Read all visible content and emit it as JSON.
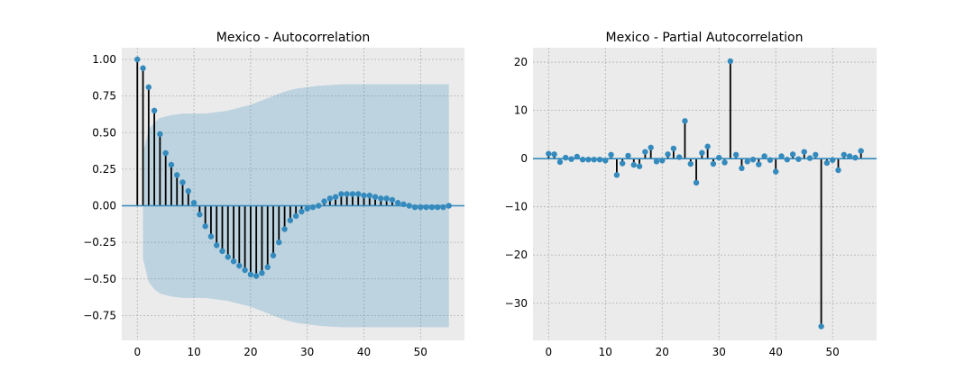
{
  "colors": {
    "axes_bg": "#EBEBEB",
    "grid": "#B0B0B0",
    "marker": "#348ABD",
    "stem": "#000000",
    "baseline": "#348ABD",
    "confidence_fill": "#348ABD",
    "tick_text": "#000000"
  },
  "chart_data": [
    {
      "type": "stem",
      "title": "Mexico - Autocorrelation",
      "xlabel": "",
      "ylabel": "",
      "xlim": [
        -2.75,
        57.75
      ],
      "ylim": [
        -0.92,
        1.08
      ],
      "xticks": [
        0,
        10,
        20,
        30,
        40,
        50
      ],
      "yticks": [
        -0.75,
        -0.5,
        -0.25,
        0.0,
        0.25,
        0.5,
        0.75,
        1.0
      ],
      "ytick_labels": [
        "−0.75",
        "−0.50",
        "−0.25",
        "0.00",
        "0.25",
        "0.50",
        "0.75",
        "1.00"
      ],
      "xtick_labels": [
        "0",
        "10",
        "20",
        "30",
        "40",
        "50"
      ],
      "grid": true,
      "x": [
        0,
        1,
        2,
        3,
        4,
        5,
        6,
        7,
        8,
        9,
        10,
        11,
        12,
        13,
        14,
        15,
        16,
        17,
        18,
        19,
        20,
        21,
        22,
        23,
        24,
        25,
        26,
        27,
        28,
        29,
        30,
        31,
        32,
        33,
        34,
        35,
        36,
        37,
        38,
        39,
        40,
        41,
        42,
        43,
        44,
        45,
        46,
        47,
        48,
        49,
        50,
        51,
        52,
        53,
        54,
        55
      ],
      "values": [
        1.0,
        0.94,
        0.81,
        0.65,
        0.49,
        0.36,
        0.28,
        0.21,
        0.16,
        0.1,
        0.02,
        -0.06,
        -0.14,
        -0.21,
        -0.27,
        -0.31,
        -0.35,
        -0.38,
        -0.41,
        -0.44,
        -0.47,
        -0.48,
        -0.46,
        -0.42,
        -0.34,
        -0.25,
        -0.16,
        -0.1,
        -0.07,
        -0.04,
        -0.02,
        -0.01,
        0.0,
        0.03,
        0.05,
        0.06,
        0.08,
        0.08,
        0.08,
        0.08,
        0.07,
        0.07,
        0.06,
        0.05,
        0.05,
        0.04,
        0.02,
        0.01,
        0.0,
        -0.01,
        -0.01,
        -0.01,
        -0.01,
        -0.01,
        -0.01,
        0.0
      ],
      "confidence_band": {
        "x": [
          1,
          2,
          3,
          4,
          5,
          6,
          7,
          8,
          9,
          10,
          12,
          14,
          16,
          18,
          20,
          22,
          24,
          26,
          28,
          30,
          32,
          34,
          36,
          38,
          40,
          45,
          50,
          55
        ],
        "upper": [
          0.36,
          0.52,
          0.57,
          0.6,
          0.61,
          0.62,
          0.625,
          0.63,
          0.63,
          0.63,
          0.63,
          0.64,
          0.65,
          0.67,
          0.69,
          0.72,
          0.75,
          0.78,
          0.8,
          0.81,
          0.82,
          0.825,
          0.83,
          0.83,
          0.83,
          0.83,
          0.83,
          0.83
        ]
      }
    },
    {
      "type": "stem",
      "title": "Mexico - Partial Autocorrelation",
      "xlabel": "",
      "ylabel": "",
      "xlim": [
        -2.75,
        57.75
      ],
      "ylim": [
        -37.7,
        23.0
      ],
      "xticks": [
        0,
        10,
        20,
        30,
        40,
        50
      ],
      "yticks": [
        -30,
        -20,
        -10,
        0,
        10,
        20
      ],
      "ytick_labels": [
        "−30",
        "−20",
        "−10",
        "0",
        "10",
        "20"
      ],
      "xtick_labels": [
        "0",
        "10",
        "20",
        "30",
        "40",
        "50"
      ],
      "grid": true,
      "x": [
        0,
        1,
        2,
        3,
        4,
        5,
        6,
        7,
        8,
        9,
        10,
        11,
        12,
        13,
        14,
        15,
        16,
        17,
        18,
        19,
        20,
        21,
        22,
        23,
        24,
        25,
        26,
        27,
        28,
        29,
        30,
        31,
        32,
        33,
        34,
        35,
        36,
        37,
        38,
        39,
        40,
        41,
        42,
        43,
        44,
        45,
        46,
        47,
        48,
        49,
        50,
        51,
        52,
        53,
        54,
        55
      ],
      "values": [
        1.0,
        0.9,
        -0.7,
        0.2,
        -0.1,
        0.4,
        -0.2,
        -0.2,
        -0.2,
        -0.2,
        -0.4,
        0.8,
        -3.4,
        -1.0,
        0.6,
        -1.3,
        -1.6,
        1.4,
        2.3,
        -0.6,
        -0.4,
        0.9,
        2.1,
        0.3,
        7.8,
        -1.1,
        -5.0,
        1.2,
        2.5,
        -1.1,
        0.2,
        -0.8,
        20.2,
        0.8,
        -2.0,
        -0.6,
        -0.2,
        -1.2,
        0.5,
        -0.3,
        -2.7,
        0.5,
        -0.2,
        0.9,
        -0.1,
        1.4,
        0.1,
        0.8,
        -34.8,
        -0.9,
        -0.3,
        -2.4,
        0.8,
        0.5,
        0.2,
        1.6
      ]
    }
  ]
}
